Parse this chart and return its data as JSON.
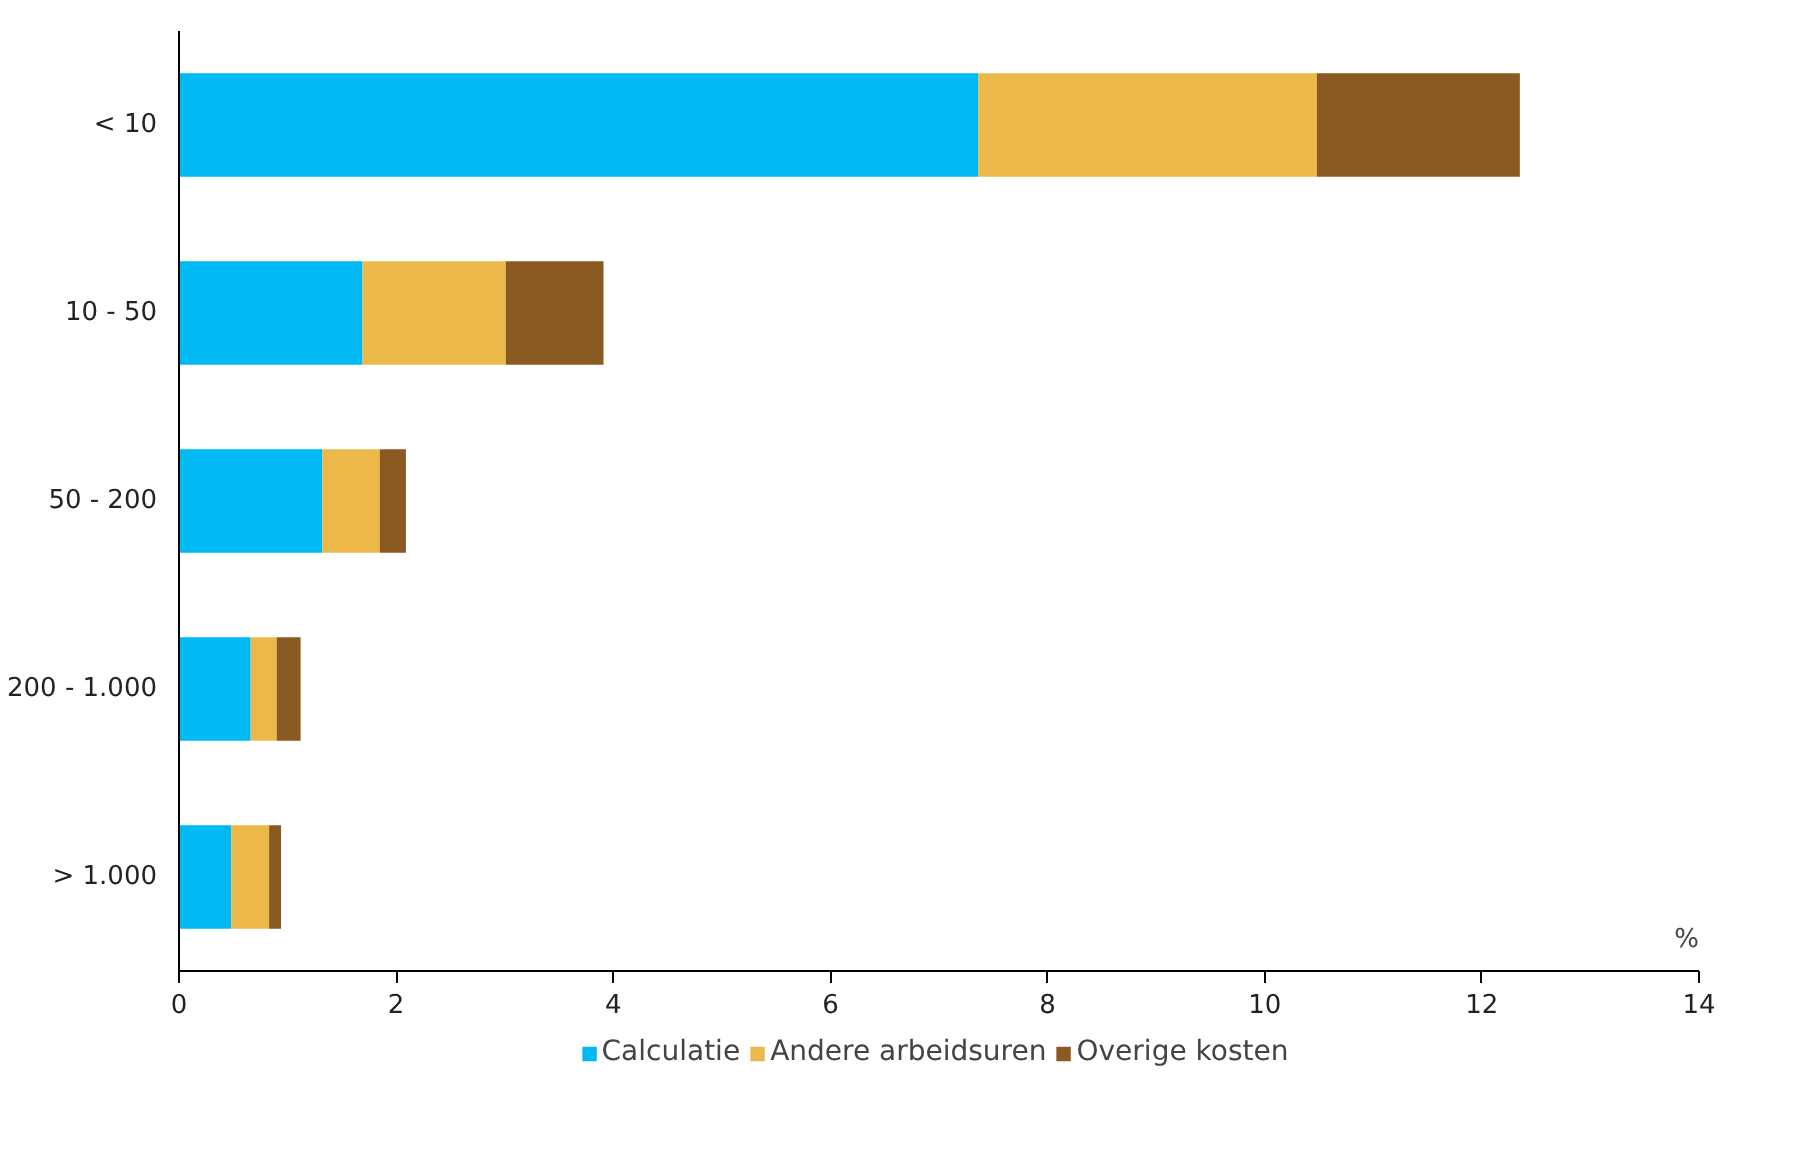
{
  "chart_data": {
    "type": "bar",
    "orientation": "horizontal",
    "stacked": true,
    "xlabel": "%",
    "categories": [
      "< 10",
      "10 - 50",
      "50 - 200",
      "200 - 1.000",
      "> 1.000"
    ],
    "series": [
      {
        "name": "Calculatie",
        "color": "#00b9f2",
        "values": [
          7.36,
          1.69,
          1.32,
          0.66,
          0.48
        ]
      },
      {
        "name": "Andere arbeidsuren",
        "color": "#ecb84a",
        "values": [
          3.12,
          1.32,
          0.53,
          0.24,
          0.35
        ]
      },
      {
        "name": "Overige kosten",
        "color": "#8b5a22",
        "values": [
          1.87,
          0.9,
          0.24,
          0.22,
          0.11
        ]
      }
    ],
    "xlim": [
      0,
      14
    ],
    "xticks": [
      0,
      2,
      4,
      6,
      8,
      10,
      12,
      14
    ],
    "grid": false,
    "legend": "bottom"
  }
}
